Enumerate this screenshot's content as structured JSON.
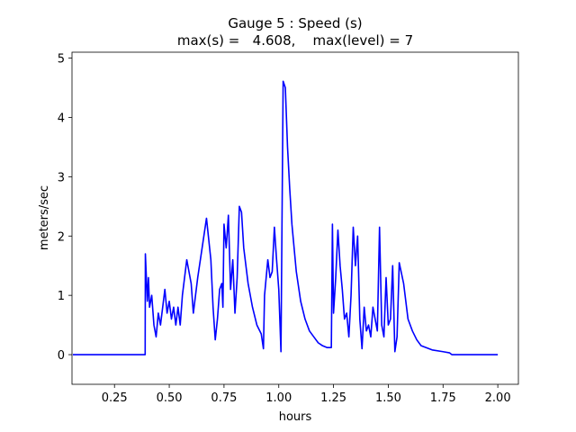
{
  "chart_data": {
    "type": "line",
    "title": "Gauge 5 : Speed (s)",
    "subtitle": "max(s) =   4.608,    max(level) = 7",
    "xlabel": "hours",
    "ylabel": "meters/sec",
    "xlim": [
      0.056,
      2.094
    ],
    "ylim": [
      -0.5,
      5.1
    ],
    "xticks": [
      {
        "value": 0.25,
        "label": "0.25"
      },
      {
        "value": 0.5,
        "label": "0.50"
      },
      {
        "value": 0.75,
        "label": "0.75"
      },
      {
        "value": 1.0,
        "label": "1.00"
      },
      {
        "value": 1.25,
        "label": "1.25"
      },
      {
        "value": 1.5,
        "label": "1.50"
      },
      {
        "value": 1.75,
        "label": "1.75"
      },
      {
        "value": 2.0,
        "label": "2.00"
      }
    ],
    "yticks": [
      0,
      1,
      2,
      3,
      4,
      5
    ],
    "grid": false,
    "x": [
      0.06,
      0.39,
      0.391,
      0.4,
      0.405,
      0.41,
      0.42,
      0.43,
      0.44,
      0.45,
      0.46,
      0.47,
      0.48,
      0.49,
      0.5,
      0.51,
      0.52,
      0.53,
      0.54,
      0.55,
      0.56,
      0.58,
      0.6,
      0.61,
      0.62,
      0.63,
      0.65,
      0.67,
      0.69,
      0.7,
      0.71,
      0.72,
      0.73,
      0.74,
      0.745,
      0.75,
      0.76,
      0.77,
      0.78,
      0.79,
      0.8,
      0.81,
      0.82,
      0.83,
      0.84,
      0.86,
      0.88,
      0.9,
      0.92,
      0.93,
      0.935,
      0.95,
      0.96,
      0.97,
      0.98,
      0.99,
      1.0,
      1.01,
      1.02,
      1.03,
      1.04,
      1.05,
      1.06,
      1.08,
      1.1,
      1.12,
      1.14,
      1.16,
      1.18,
      1.2,
      1.22,
      1.24,
      1.245,
      1.25,
      1.26,
      1.27,
      1.28,
      1.29,
      1.3,
      1.31,
      1.32,
      1.33,
      1.34,
      1.35,
      1.36,
      1.37,
      1.38,
      1.39,
      1.4,
      1.41,
      1.42,
      1.43,
      1.44,
      1.45,
      1.46,
      1.47,
      1.48,
      1.49,
      1.5,
      1.51,
      1.52,
      1.53,
      1.54,
      1.55,
      1.57,
      1.59,
      1.61,
      1.63,
      1.65,
      1.7,
      1.75,
      1.78,
      1.79,
      2.0
    ],
    "series": [
      {
        "name": "s",
        "color": "#0000ff",
        "values": [
          0,
          0,
          1.7,
          0.9,
          1.3,
          0.8,
          1.0,
          0.5,
          0.3,
          0.7,
          0.5,
          0.8,
          1.1,
          0.7,
          0.9,
          0.6,
          0.8,
          0.5,
          0.8,
          0.5,
          1.0,
          1.6,
          1.2,
          0.7,
          1.0,
          1.3,
          1.8,
          2.3,
          1.6,
          0.8,
          0.25,
          0.6,
          1.1,
          1.2,
          0.8,
          2.2,
          1.8,
          2.35,
          1.1,
          1.6,
          0.7,
          1.3,
          2.5,
          2.4,
          1.8,
          1.2,
          0.8,
          0.5,
          0.35,
          0.1,
          1.0,
          1.6,
          1.3,
          1.4,
          2.15,
          1.6,
          1.1,
          0.05,
          4.61,
          4.5,
          3.5,
          2.8,
          2.2,
          1.4,
          0.9,
          0.6,
          0.4,
          0.3,
          0.2,
          0.15,
          0.12,
          0.12,
          2.2,
          0.7,
          1.3,
          2.1,
          1.5,
          1.1,
          0.6,
          0.7,
          0.3,
          1.0,
          2.15,
          1.5,
          2.0,
          0.6,
          0.1,
          0.8,
          0.4,
          0.5,
          0.3,
          0.8,
          0.6,
          0.4,
          2.15,
          0.5,
          0.3,
          1.3,
          0.5,
          0.6,
          1.5,
          0.05,
          0.3,
          1.55,
          1.2,
          0.6,
          0.4,
          0.25,
          0.15,
          0.08,
          0.05,
          0.03,
          0,
          0
        ]
      }
    ]
  }
}
